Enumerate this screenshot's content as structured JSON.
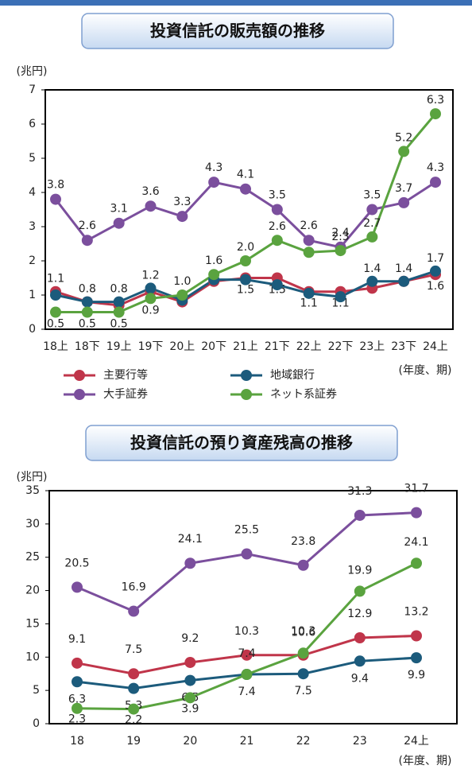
{
  "chart_data": [
    {
      "type": "line",
      "title": "投資信託の販売額の推移",
      "y_label": "(兆円)",
      "x_label": "(年度、期)",
      "categories": [
        "18上",
        "18下",
        "19上",
        "19下",
        "20上",
        "20下",
        "21上",
        "21下",
        "22上",
        "22下",
        "23上",
        "23下",
        "24上"
      ],
      "ylim": [
        0,
        7
      ],
      "yticks": [
        0,
        1,
        2,
        3,
        4,
        5,
        6,
        7
      ],
      "series": [
        {
          "name": "主要行等",
          "color": "#c0354a",
          "values": [
            1.1,
            0.8,
            0.7,
            1.1,
            0.8,
            1.4,
            1.5,
            1.5,
            1.1,
            1.1,
            1.2,
            1.4,
            1.6
          ],
          "value_labels": [
            "1.1",
            null,
            null,
            null,
            null,
            null,
            "1.5",
            "1.5",
            "1.1",
            "1.1",
            null,
            null,
            "1.6"
          ]
        },
        {
          "name": "地域銀行",
          "color": "#1c5b7c",
          "values": [
            1.0,
            0.8,
            0.8,
            1.2,
            0.85,
            1.45,
            1.45,
            1.3,
            1.05,
            0.95,
            1.4,
            1.4,
            1.7
          ],
          "value_labels": [
            null,
            "0.8",
            "0.8",
            "1.2",
            null,
            null,
            null,
            null,
            null,
            null,
            "1.4",
            "1.4",
            "1.7"
          ]
        },
        {
          "name": "大手証券",
          "color": "#7b4f9d",
          "values": [
            3.8,
            2.6,
            3.1,
            3.6,
            3.3,
            4.3,
            4.1,
            3.5,
            2.6,
            2.4,
            3.5,
            3.7,
            4.3
          ],
          "value_labels": [
            "3.8",
            "2.6",
            "3.1",
            "3.6",
            "3.3",
            "4.3",
            "4.1",
            "3.5",
            "2.6",
            "2.4",
            "3.5",
            "3.7",
            "4.3"
          ]
        },
        {
          "name": "ネット系証券",
          "color": "#5aa33f",
          "values": [
            0.5,
            0.5,
            0.5,
            0.9,
            1.0,
            1.6,
            2.0,
            2.6,
            2.25,
            2.3,
            2.7,
            5.2,
            6.3
          ],
          "value_labels": [
            "0.5",
            "0.5",
            "0.5",
            "0.9",
            "1.0",
            "1.6",
            "2.0",
            "2.6",
            null,
            "2.3",
            "2.7",
            "5.2",
            "6.3"
          ]
        }
      ]
    },
    {
      "type": "line",
      "title": "投資信託の預り資産残高の推移",
      "y_label": "(兆円)",
      "x_label": "(年度、期)",
      "categories": [
        "18",
        "19",
        "20",
        "21",
        "22",
        "23",
        "24上"
      ],
      "ylim": [
        0,
        35
      ],
      "yticks": [
        0,
        5,
        10,
        15,
        20,
        25,
        30,
        35
      ],
      "series": [
        {
          "color": "#c0354a",
          "values": [
            9.1,
            7.5,
            9.2,
            10.3,
            10.3,
            12.9,
            13.2
          ]
        },
        {
          "color": "#1c5b7c",
          "values": [
            6.3,
            5.3,
            6.5,
            7.4,
            7.5,
            9.4,
            9.9
          ]
        },
        {
          "color": "#7b4f9d",
          "values": [
            20.5,
            16.9,
            24.1,
            25.5,
            23.8,
            31.3,
            31.7
          ]
        },
        {
          "color": "#5aa33f",
          "values": [
            2.3,
            2.2,
            3.9,
            7.4,
            10.6,
            19.9,
            24.1
          ]
        }
      ]
    }
  ]
}
